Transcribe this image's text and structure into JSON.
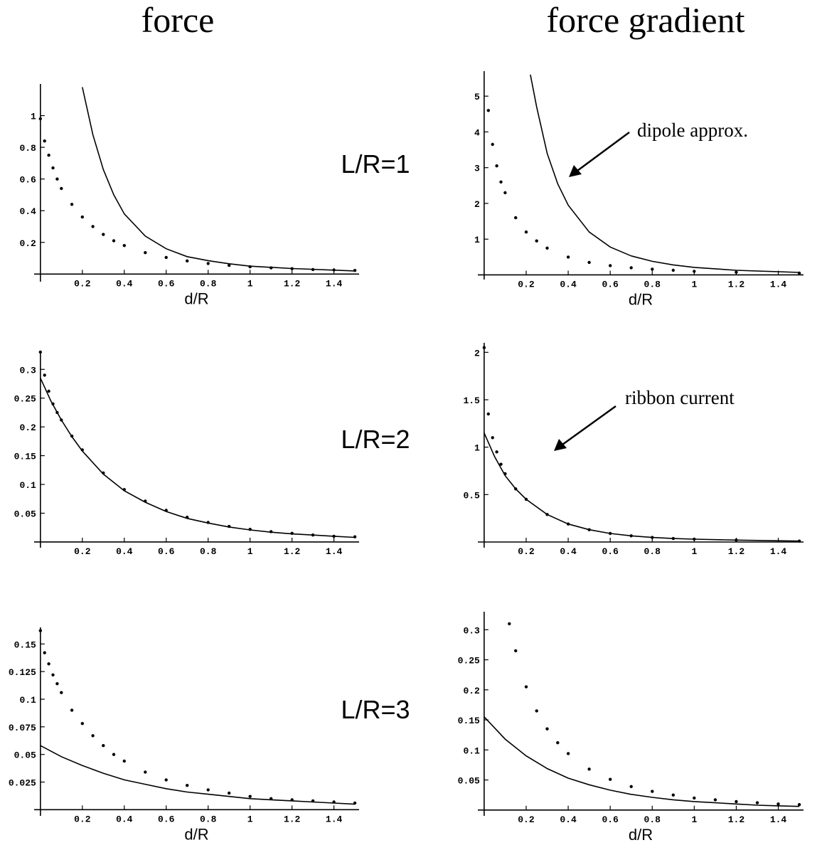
{
  "titles": {
    "left": "force",
    "right": "force gradient"
  },
  "row_labels": [
    "L/R=1",
    "L/R=2",
    "L/R=3"
  ],
  "annotations": {
    "dipole": "dipole approx.",
    "ribbon": "ribbon current"
  },
  "series_styles": {
    "dipole": "solid line",
    "ribbon": "dotted"
  },
  "chart_data": [
    {
      "id": "force-lr1",
      "type": "line",
      "title": "force",
      "row_label": "L/R=1",
      "xlabel": "d/R",
      "ylabel": "",
      "xlim": [
        -0.03,
        1.52
      ],
      "ylim": [
        -0.03,
        1.2
      ],
      "xticks": [
        0.2,
        0.4,
        0.6,
        0.8,
        1,
        1.2,
        1.4
      ],
      "xtick_labels": [
        "0.2",
        "0.4",
        "0.6",
        "0.8",
        "1",
        "1.2",
        "1.4"
      ],
      "yticks": [
        0.2,
        0.4,
        0.6,
        0.8,
        1
      ],
      "ytick_labels": [
        "0.2",
        "0.4",
        "0.6",
        "0.8",
        "1"
      ],
      "series": [
        {
          "key": "dipole",
          "style": "solid",
          "x": [
            0.2,
            0.25,
            0.3,
            0.35,
            0.4,
            0.5,
            0.6,
            0.7,
            0.8,
            0.9,
            1.0,
            1.2,
            1.5
          ],
          "y": [
            1.18,
            0.88,
            0.66,
            0.5,
            0.38,
            0.24,
            0.16,
            0.11,
            0.085,
            0.065,
            0.05,
            0.035,
            0.02
          ]
        },
        {
          "key": "ribbon",
          "style": "dotted",
          "x": [
            0,
            0.02,
            0.04,
            0.06,
            0.08,
            0.1,
            0.15,
            0.2,
            0.25,
            0.3,
            0.35,
            0.4,
            0.5,
            0.6,
            0.7,
            0.8,
            0.9,
            1.0,
            1.1,
            1.2,
            1.3,
            1.4,
            1.5
          ],
          "y": [
            0.98,
            0.84,
            0.75,
            0.67,
            0.6,
            0.54,
            0.44,
            0.36,
            0.3,
            0.25,
            0.21,
            0.18,
            0.135,
            0.105,
            0.083,
            0.067,
            0.055,
            0.046,
            0.039,
            0.034,
            0.029,
            0.026,
            0.023
          ]
        }
      ]
    },
    {
      "id": "gradient-lr1",
      "type": "line",
      "title": "force gradient",
      "row_label": "L/R=1",
      "xlabel": "d/R",
      "ylabel": "",
      "xlim": [
        -0.03,
        1.52
      ],
      "ylim": [
        -0.05,
        5.7
      ],
      "xticks": [
        0.2,
        0.4,
        0.6,
        0.8,
        1,
        1.2,
        1.4
      ],
      "xtick_labels": [
        "0.2",
        "0.4",
        "0.6",
        "0.8",
        "1",
        "1.2",
        "1.4"
      ],
      "yticks": [
        1,
        2,
        3,
        4,
        5
      ],
      "ytick_labels": [
        "1",
        "2",
        "3",
        "4",
        "5"
      ],
      "annotation": "dipole approx.",
      "series": [
        {
          "key": "dipole",
          "style": "solid",
          "x": [
            0.22,
            0.25,
            0.3,
            0.35,
            0.4,
            0.5,
            0.6,
            0.7,
            0.8,
            0.9,
            1.0,
            1.2,
            1.5
          ],
          "y": [
            5.6,
            4.7,
            3.4,
            2.55,
            1.95,
            1.2,
            0.78,
            0.53,
            0.38,
            0.28,
            0.21,
            0.13,
            0.07
          ]
        },
        {
          "key": "ribbon",
          "style": "dotted",
          "x": [
            0.02,
            0.04,
            0.06,
            0.08,
            0.1,
            0.15,
            0.2,
            0.25,
            0.3,
            0.4,
            0.5,
            0.6,
            0.7,
            0.8,
            0.9,
            1.0,
            1.2,
            1.5
          ],
          "y": [
            4.6,
            3.65,
            3.05,
            2.6,
            2.3,
            1.6,
            1.2,
            0.95,
            0.75,
            0.5,
            0.35,
            0.26,
            0.2,
            0.16,
            0.13,
            0.1,
            0.075,
            0.05
          ]
        }
      ]
    },
    {
      "id": "force-lr2",
      "type": "line",
      "title": "force",
      "row_label": "L/R=2",
      "xlabel": "",
      "ylabel": "",
      "xlim": [
        -0.03,
        1.52
      ],
      "ylim": [
        -0.005,
        0.33
      ],
      "xticks": [
        0.2,
        0.4,
        0.6,
        0.8,
        1,
        1.2,
        1.4
      ],
      "xtick_labels": [
        "0.2",
        "0.4",
        "0.6",
        "0.8",
        "1",
        "1.2",
        "1.4"
      ],
      "yticks": [
        0.05,
        0.1,
        0.15,
        0.2,
        0.25,
        0.3
      ],
      "ytick_labels": [
        "0.05",
        "0.1",
        "0.15",
        "0.2",
        "0.25",
        "0.3"
      ],
      "series": [
        {
          "key": "dipole",
          "style": "solid",
          "x": [
            0,
            0.05,
            0.1,
            0.15,
            0.2,
            0.3,
            0.4,
            0.5,
            0.6,
            0.7,
            0.8,
            0.9,
            1.0,
            1.1,
            1.2,
            1.3,
            1.4,
            1.5
          ],
          "y": [
            0.285,
            0.245,
            0.212,
            0.183,
            0.158,
            0.118,
            0.089,
            0.069,
            0.053,
            0.041,
            0.033,
            0.026,
            0.021,
            0.017,
            0.014,
            0.012,
            0.01,
            0.008
          ]
        },
        {
          "key": "ribbon",
          "style": "dotted",
          "x": [
            0,
            0.02,
            0.04,
            0.06,
            0.08,
            0.1,
            0.15,
            0.2,
            0.3,
            0.4,
            0.5,
            0.6,
            0.7,
            0.8,
            0.9,
            1.0,
            1.1,
            1.2,
            1.3,
            1.4,
            1.5
          ],
          "y": [
            0.33,
            0.29,
            0.262,
            0.24,
            0.225,
            0.212,
            0.184,
            0.16,
            0.12,
            0.091,
            0.071,
            0.055,
            0.043,
            0.034,
            0.027,
            0.022,
            0.018,
            0.015,
            0.012,
            0.01,
            0.009
          ]
        }
      ]
    },
    {
      "id": "gradient-lr2",
      "type": "line",
      "title": "force gradient",
      "row_label": "L/R=2",
      "xlabel": "",
      "ylabel": "",
      "xlim": [
        -0.03,
        1.52
      ],
      "ylim": [
        -0.03,
        2.1
      ],
      "xticks": [
        0.2,
        0.4,
        0.6,
        0.8,
        1,
        1.2,
        1.4
      ],
      "xtick_labels": [
        "0.2",
        "0.4",
        "0.6",
        "0.8",
        "1",
        "1.2",
        "1.4"
      ],
      "yticks": [
        0.5,
        1,
        1.5,
        2
      ],
      "ytick_labels": [
        "0.5",
        "1",
        "1.5",
        "2"
      ],
      "series": [
        {
          "key": "dipole",
          "style": "solid",
          "x": [
            0,
            0.05,
            0.1,
            0.15,
            0.2,
            0.3,
            0.4,
            0.5,
            0.6,
            0.7,
            0.8,
            0.9,
            1.0,
            1.2,
            1.5
          ],
          "y": [
            1.15,
            0.9,
            0.7,
            0.56,
            0.45,
            0.29,
            0.19,
            0.13,
            0.09,
            0.065,
            0.048,
            0.037,
            0.03,
            0.02,
            0.01
          ]
        },
        {
          "key": "ribbon",
          "style": "dotted",
          "x": [
            0,
            0.02,
            0.04,
            0.06,
            0.08,
            0.1,
            0.15,
            0.2,
            0.3,
            0.4,
            0.5,
            0.6,
            0.7,
            0.8,
            0.9,
            1.0,
            1.2,
            1.5
          ],
          "y": [
            2.05,
            1.35,
            1.1,
            0.95,
            0.82,
            0.72,
            0.56,
            0.45,
            0.29,
            0.19,
            0.13,
            0.09,
            0.065,
            0.048,
            0.037,
            0.03,
            0.02,
            0.01
          ]
        }
      ]
    },
    {
      "id": "force-lr3",
      "type": "line",
      "title": "force",
      "row_label": "L/R=3",
      "xlabel": "d/R",
      "ylabel": "",
      "xlim": [
        -0.03,
        1.52
      ],
      "ylim": [
        -0.003,
        0.165
      ],
      "xticks": [
        0.2,
        0.4,
        0.6,
        0.8,
        1,
        1.2,
        1.4
      ],
      "xtick_labels": [
        "0.2",
        "0.4",
        "0.6",
        "0.8",
        "1",
        "1.2",
        "1.4"
      ],
      "yticks": [
        0.025,
        0.05,
        0.075,
        0.1,
        0.125,
        0.15
      ],
      "ytick_labels": [
        "0.025",
        "0.05",
        "0.075",
        "0.1",
        "0.125",
        "0.15"
      ],
      "series": [
        {
          "key": "dipole",
          "style": "solid",
          "x": [
            0,
            0.1,
            0.2,
            0.3,
            0.4,
            0.5,
            0.6,
            0.7,
            0.8,
            0.9,
            1.0,
            1.1,
            1.2,
            1.3,
            1.4,
            1.5
          ],
          "y": [
            0.058,
            0.048,
            0.04,
            0.033,
            0.027,
            0.023,
            0.019,
            0.016,
            0.014,
            0.012,
            0.01,
            0.009,
            0.008,
            0.007,
            0.006,
            0.005
          ]
        },
        {
          "key": "ribbon",
          "style": "dotted",
          "x": [
            0,
            0.02,
            0.04,
            0.06,
            0.08,
            0.1,
            0.15,
            0.2,
            0.25,
            0.3,
            0.35,
            0.4,
            0.5,
            0.6,
            0.7,
            0.8,
            0.9,
            1.0,
            1.1,
            1.2,
            1.3,
            1.4,
            1.5
          ],
          "y": [
            0.162,
            0.142,
            0.132,
            0.122,
            0.114,
            0.106,
            0.09,
            0.078,
            0.067,
            0.058,
            0.05,
            0.044,
            0.034,
            0.027,
            0.022,
            0.018,
            0.015,
            0.012,
            0.01,
            0.009,
            0.008,
            0.007,
            0.006
          ]
        }
      ]
    },
    {
      "id": "gradient-lr3",
      "type": "line",
      "title": "force gradient",
      "row_label": "L/R=3",
      "xlabel": "d/R",
      "ylabel": "",
      "xlim": [
        -0.03,
        1.52
      ],
      "ylim": [
        -0.005,
        0.33
      ],
      "xticks": [
        0.2,
        0.4,
        0.6,
        0.8,
        1,
        1.2,
        1.4
      ],
      "xtick_labels": [
        "0.2",
        "0.4",
        "0.6",
        "0.8",
        "1",
        "1.2",
        "1.4"
      ],
      "yticks": [
        0.05,
        0.1,
        0.15,
        0.2,
        0.25,
        0.3
      ],
      "ytick_labels": [
        "0.05",
        "0.1",
        "0.15",
        "0.2",
        "0.25",
        "0.3"
      ],
      "annotation": "ribbon current",
      "series": [
        {
          "key": "dipole",
          "style": "solid",
          "x": [
            0,
            0.1,
            0.2,
            0.3,
            0.4,
            0.5,
            0.6,
            0.7,
            0.8,
            0.9,
            1.0,
            1.1,
            1.2,
            1.3,
            1.4,
            1.5
          ],
          "y": [
            0.155,
            0.118,
            0.09,
            0.069,
            0.053,
            0.042,
            0.033,
            0.026,
            0.021,
            0.017,
            0.014,
            0.012,
            0.01,
            0.008,
            0.007,
            0.006
          ]
        },
        {
          "key": "ribbon",
          "style": "dotted",
          "x": [
            0.12,
            0.15,
            0.2,
            0.25,
            0.3,
            0.35,
            0.4,
            0.5,
            0.6,
            0.7,
            0.8,
            0.9,
            1.0,
            1.1,
            1.2,
            1.3,
            1.4,
            1.5
          ],
          "y": [
            0.31,
            0.265,
            0.205,
            0.165,
            0.135,
            0.112,
            0.094,
            0.068,
            0.051,
            0.039,
            0.031,
            0.025,
            0.02,
            0.017,
            0.014,
            0.012,
            0.01,
            0.009
          ]
        }
      ]
    }
  ]
}
